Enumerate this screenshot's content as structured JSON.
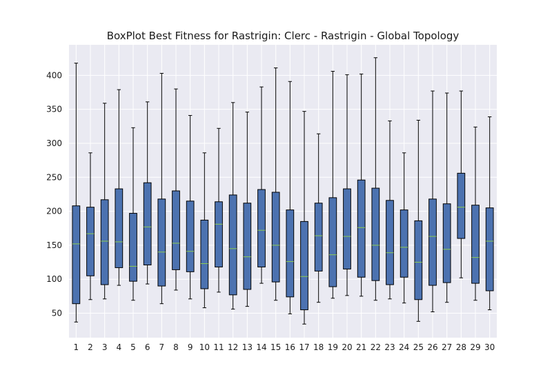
{
  "chart_data": {
    "type": "boxplot",
    "title": "BoxPlot Best Fitness for Rastrigin: Clerc - Rastrigin - Global Topology",
    "xlabel": "",
    "ylabel": "",
    "categories": [
      "1",
      "2",
      "3",
      "4",
      "5",
      "6",
      "7",
      "8",
      "9",
      "10",
      "11",
      "12",
      "13",
      "14",
      "15",
      "16",
      "17",
      "18",
      "19",
      "20",
      "21",
      "22",
      "23",
      "24",
      "25",
      "26",
      "27",
      "28",
      "29",
      "30"
    ],
    "ylim": [
      14,
      445
    ],
    "yticks": [
      50,
      100,
      150,
      200,
      250,
      300,
      350,
      400
    ],
    "grid": true,
    "boxes": [
      {
        "label": "1",
        "min": 37,
        "q1": 64,
        "median": 152,
        "q3": 208,
        "max": 418
      },
      {
        "label": "2",
        "min": 70,
        "q1": 105,
        "median": 167,
        "q3": 206,
        "max": 286
      },
      {
        "label": "3",
        "min": 71,
        "q1": 92,
        "median": 156,
        "q3": 217,
        "max": 359
      },
      {
        "label": "4",
        "min": 91,
        "q1": 117,
        "median": 155,
        "q3": 233,
        "max": 379
      },
      {
        "label": "5",
        "min": 69,
        "q1": 97,
        "median": 119,
        "q3": 197,
        "max": 323
      },
      {
        "label": "6",
        "min": 93,
        "q1": 121,
        "median": 177,
        "q3": 242,
        "max": 361
      },
      {
        "label": "7",
        "min": 64,
        "q1": 90,
        "median": 140,
        "q3": 218,
        "max": 403
      },
      {
        "label": "8",
        "min": 84,
        "q1": 114,
        "median": 153,
        "q3": 230,
        "max": 380
      },
      {
        "label": "9",
        "min": 71,
        "q1": 111,
        "median": 141,
        "q3": 215,
        "max": 341
      },
      {
        "label": "10",
        "min": 58,
        "q1": 86,
        "median": 123,
        "q3": 187,
        "max": 286
      },
      {
        "label": "11",
        "min": 81,
        "q1": 118,
        "median": 181,
        "q3": 214,
        "max": 322
      },
      {
        "label": "12",
        "min": 56,
        "q1": 77,
        "median": 145,
        "q3": 224,
        "max": 360
      },
      {
        "label": "13",
        "min": 60,
        "q1": 85,
        "median": 133,
        "q3": 212,
        "max": 346
      },
      {
        "label": "14",
        "min": 94,
        "q1": 118,
        "median": 172,
        "q3": 232,
        "max": 383
      },
      {
        "label": "15",
        "min": 69,
        "q1": 96,
        "median": 150,
        "q3": 228,
        "max": 411
      },
      {
        "label": "16",
        "min": 49,
        "q1": 74,
        "median": 126,
        "q3": 202,
        "max": 391
      },
      {
        "label": "17",
        "min": 34,
        "q1": 55,
        "median": 104,
        "q3": 185,
        "max": 347
      },
      {
        "label": "18",
        "min": 66,
        "q1": 112,
        "median": 164,
        "q3": 212,
        "max": 314
      },
      {
        "label": "19",
        "min": 72,
        "q1": 89,
        "median": 136,
        "q3": 220,
        "max": 406
      },
      {
        "label": "20",
        "min": 76,
        "q1": 115,
        "median": 163,
        "q3": 233,
        "max": 401
      },
      {
        "label": "21",
        "min": 75,
        "q1": 103,
        "median": 176,
        "q3": 246,
        "max": 402
      },
      {
        "label": "22",
        "min": 69,
        "q1": 98,
        "median": 150,
        "q3": 234,
        "max": 426
      },
      {
        "label": "23",
        "min": 71,
        "q1": 92,
        "median": 139,
        "q3": 216,
        "max": 333
      },
      {
        "label": "24",
        "min": 65,
        "q1": 103,
        "median": 147,
        "q3": 202,
        "max": 286
      },
      {
        "label": "25",
        "min": 38,
        "q1": 70,
        "median": 125,
        "q3": 186,
        "max": 334
      },
      {
        "label": "26",
        "min": 52,
        "q1": 91,
        "median": 163,
        "q3": 218,
        "max": 377
      },
      {
        "label": "27",
        "min": 66,
        "q1": 95,
        "median": 144,
        "q3": 211,
        "max": 374
      },
      {
        "label": "28",
        "min": 102,
        "q1": 160,
        "median": 206,
        "q3": 256,
        "max": 377
      },
      {
        "label": "29",
        "min": 69,
        "q1": 94,
        "median": 132,
        "q3": 209,
        "max": 324
      },
      {
        "label": "30",
        "min": 55,
        "q1": 83,
        "median": 156,
        "q3": 205,
        "max": 339
      }
    ],
    "colors": {
      "background": "#eaeaf2",
      "grid": "#ffffff",
      "box_fill": "#4c72b0",
      "box_edge": "#000000",
      "whisker": "#000000",
      "median": "#8fce4f",
      "text": "#1a1a1a"
    }
  }
}
